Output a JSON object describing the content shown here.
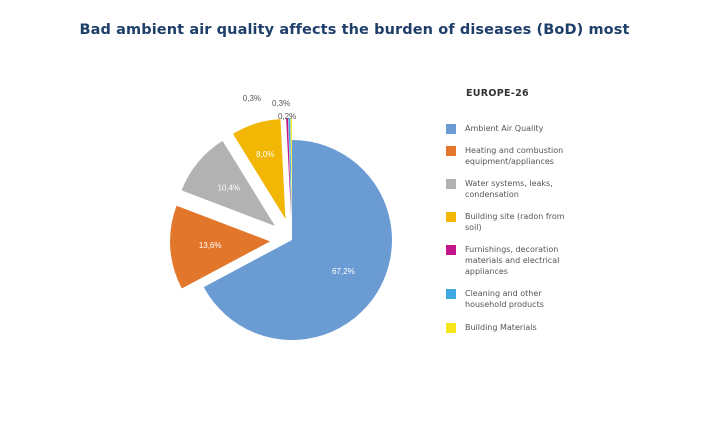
{
  "chart_data": {
    "type": "pie",
    "title": "Bad ambient air quality affects the burden of diseases (BoD) most",
    "legend_title": "EUROPE-26",
    "legend_placement": "right",
    "slices": [
      {
        "name": "Ambient Air Quality",
        "value": 67.2,
        "label": "67,2%",
        "color": "#6a9bd3"
      },
      {
        "name": "Heating and combustion equipment/appliances",
        "value": 13.6,
        "label": "13,6%",
        "color": "#e2762b"
      },
      {
        "name": "Water systems, leaks, condensation",
        "value": 10.4,
        "label": "10,4%",
        "color": "#b2b2b2"
      },
      {
        "name": "Building site (radon from soil)",
        "value": 8.0,
        "label": "8,0%",
        "color": "#f2b705"
      },
      {
        "name": "Furnishings, decoration materials and electrical appliances",
        "value": 0.3,
        "label": "0,3%",
        "color": "#c5158a"
      },
      {
        "name": "Cleaning and other household products",
        "value": 0.3,
        "label": "0,3%",
        "color": "#3fa9e0"
      },
      {
        "name": "Building Materials",
        "value": 0.2,
        "label": "0,2%",
        "color": "#f6e71c"
      }
    ]
  }
}
